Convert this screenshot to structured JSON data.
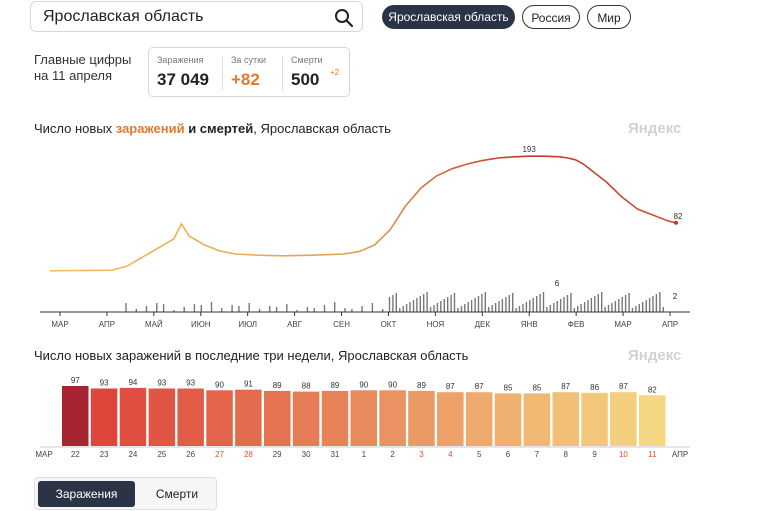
{
  "search": {
    "value": "Ярославская область"
  },
  "region_buttons": [
    {
      "label": "Ярославская область",
      "active": true
    },
    {
      "label": "Россия",
      "active": false
    },
    {
      "label": "Мир",
      "active": false
    }
  ],
  "main_figures": {
    "heading_line1": "Главные цифры",
    "heading_line2": "на 11 апреля",
    "stats": [
      {
        "label": "Заражения",
        "value": "37 049",
        "delta": ""
      },
      {
        "label": "За сутки",
        "value": "+82",
        "delta": ""
      },
      {
        "label": "Смерти",
        "value": "500",
        "delta": "+2"
      }
    ]
  },
  "chart_data": [
    {
      "type": "line",
      "title_parts": [
        "Число новых ",
        "заражений",
        " и смертей",
        ", Ярославская область"
      ],
      "watermark": "Яндекс",
      "x_tick_labels": [
        "МАР",
        "АПР",
        "МАЙ",
        "ИЮН",
        "ИЮЛ",
        "АВГ",
        "СЕН",
        "ОКТ",
        "НОЯ",
        "ДЕК",
        "ЯНВ",
        "ФЕВ",
        "МАР",
        "АПР"
      ],
      "series": [
        {
          "name": "заражений",
          "color_start": "#f0c060",
          "color_end": "#c0392b",
          "x": [
            0,
            8,
            10,
            12,
            14,
            16,
            17,
            18,
            20,
            22,
            24,
            27,
            30,
            34,
            38,
            40,
            42,
            44,
            46,
            48,
            50,
            52,
            54,
            56,
            58,
            60,
            62,
            64,
            66,
            67,
            68,
            69,
            70,
            71,
            72,
            74,
            76,
            78,
            80,
            81
          ],
          "y": [
            2,
            3,
            10,
            25,
            40,
            55,
            80,
            60,
            45,
            35,
            30,
            28,
            27,
            28,
            30,
            34,
            45,
            70,
            110,
            140,
            160,
            172,
            180,
            186,
            190,
            192,
            193,
            193,
            192,
            190,
            187,
            180,
            170,
            160,
            150,
            125,
            105,
            95,
            85,
            82
          ]
        },
        {
          "name": "смертей",
          "color": "#555555",
          "peak_label": "6",
          "last_label": "2"
        }
      ],
      "annotations": [
        {
          "label": "193"
        },
        {
          "label": "82"
        }
      ]
    },
    {
      "type": "bar",
      "title": "Число новых заражений в последние три недели, Ярославская область",
      "watermark": "Яндекс",
      "start_month": "МАР",
      "end_month": "АПР",
      "categories": [
        "22",
        "23",
        "24",
        "25",
        "26",
        "27",
        "28",
        "29",
        "30",
        "31",
        "1",
        "2",
        "3",
        "4",
        "5",
        "6",
        "7",
        "8",
        "9",
        "10",
        "11"
      ],
      "weekend": [
        false,
        false,
        false,
        false,
        false,
        true,
        true,
        false,
        false,
        false,
        false,
        false,
        true,
        true,
        false,
        false,
        false,
        false,
        false,
        true,
        true
      ],
      "values": [
        97,
        93,
        94,
        93,
        93,
        90,
        91,
        89,
        88,
        89,
        90,
        90,
        89,
        87,
        87,
        85,
        85,
        87,
        86,
        87,
        82
      ],
      "ylim": [
        0,
        97
      ]
    }
  ],
  "tabs": [
    {
      "label": "Заражения",
      "active": true
    },
    {
      "label": "Смерти",
      "active": false
    }
  ]
}
